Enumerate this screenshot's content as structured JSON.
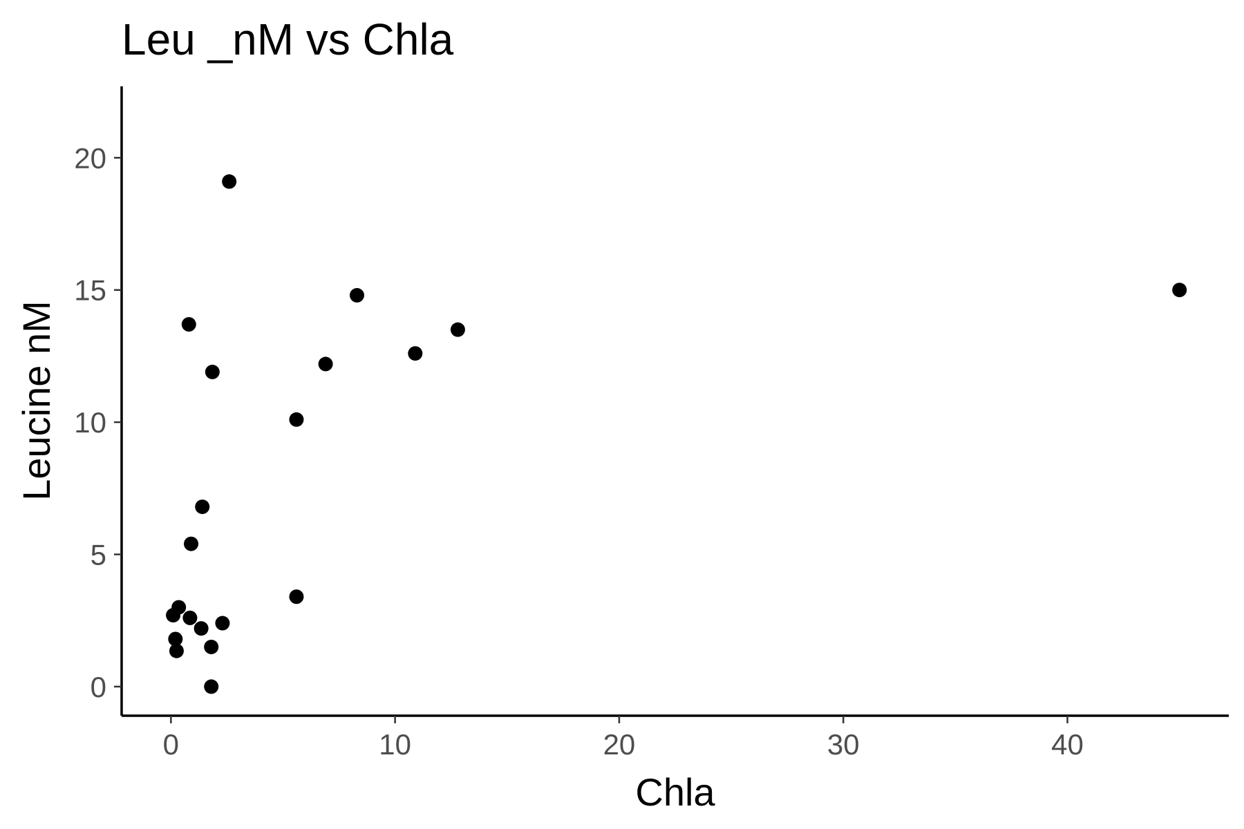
{
  "chart_data": {
    "type": "scatter",
    "title": "Leu _nM vs Chla",
    "xlabel": "Chla",
    "ylabel": "Leucine nM",
    "xlim": [
      -2.2,
      47.2
    ],
    "ylim": [
      -1.1,
      22.7
    ],
    "x_ticks": [
      0,
      10,
      20,
      30,
      40
    ],
    "y_ticks": [
      0,
      5,
      10,
      15,
      20
    ],
    "grid": false,
    "legend": "none",
    "point_color": "#000000",
    "points": [
      {
        "x": 2.6,
        "y": 19.1
      },
      {
        "x": 0.8,
        "y": 13.7
      },
      {
        "x": 1.85,
        "y": 11.9
      },
      {
        "x": 1.4,
        "y": 6.8
      },
      {
        "x": 0.9,
        "y": 5.4
      },
      {
        "x": 0.1,
        "y": 2.7
      },
      {
        "x": 0.35,
        "y": 3.0
      },
      {
        "x": 0.85,
        "y": 2.6
      },
      {
        "x": 1.35,
        "y": 2.2
      },
      {
        "x": 2.3,
        "y": 2.4
      },
      {
        "x": 0.2,
        "y": 1.8
      },
      {
        "x": 0.25,
        "y": 1.35
      },
      {
        "x": 1.8,
        "y": 1.5
      },
      {
        "x": 1.8,
        "y": 0.0
      },
      {
        "x": 5.6,
        "y": 10.1
      },
      {
        "x": 5.6,
        "y": 3.4
      },
      {
        "x": 6.9,
        "y": 12.2
      },
      {
        "x": 8.3,
        "y": 14.8
      },
      {
        "x": 10.9,
        "y": 12.6
      },
      {
        "x": 12.8,
        "y": 13.5
      },
      {
        "x": 45.0,
        "y": 15.0
      }
    ]
  }
}
